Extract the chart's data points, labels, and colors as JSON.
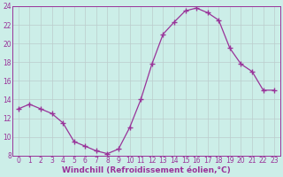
{
  "x": [
    0,
    1,
    2,
    3,
    4,
    5,
    6,
    7,
    8,
    9,
    10,
    11,
    12,
    13,
    14,
    15,
    16,
    17,
    18,
    19,
    20,
    21,
    22,
    23
  ],
  "y": [
    13,
    13.5,
    13,
    12.5,
    11.5,
    9.5,
    9,
    8.5,
    8.2,
    8.7,
    11,
    14,
    17.8,
    21,
    22.3,
    23.5,
    23.8,
    23.3,
    22.5,
    19.5,
    17.8,
    17,
    15,
    15
  ],
  "line_color": "#993399",
  "marker": "+",
  "marker_size": 4,
  "linewidth": 0.9,
  "xlabel": "Windchill (Refroidissement éolien,°C)",
  "xlabel_fontsize": 6.5,
  "ylim": [
    8,
    24
  ],
  "xlim_min": -0.5,
  "xlim_max": 23.5,
  "yticks": [
    8,
    10,
    12,
    14,
    16,
    18,
    20,
    22,
    24
  ],
  "xticks": [
    0,
    1,
    2,
    3,
    4,
    5,
    6,
    7,
    8,
    9,
    10,
    11,
    12,
    13,
    14,
    15,
    16,
    17,
    18,
    19,
    20,
    21,
    22,
    23
  ],
  "tick_fontsize": 5.5,
  "background_color": "#cceee8",
  "grid_color": "#bbcccc",
  "grid_linewidth": 0.5,
  "spine_color": "#993399"
}
